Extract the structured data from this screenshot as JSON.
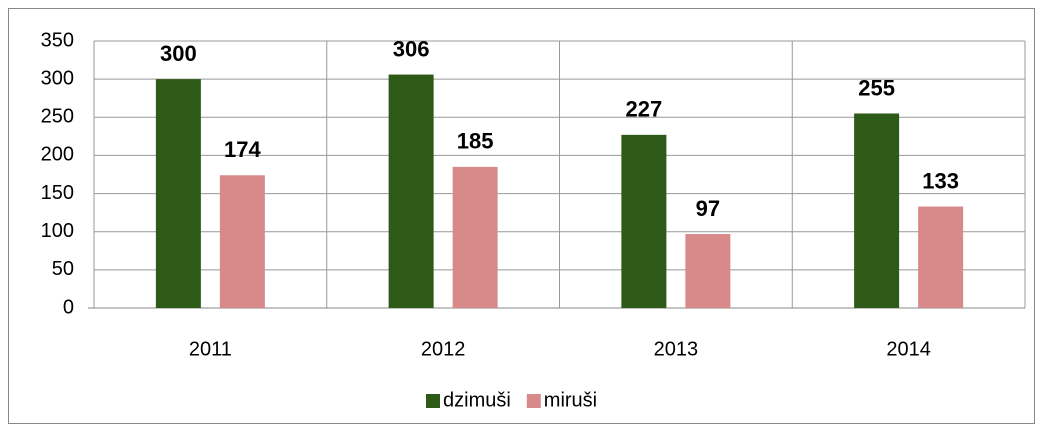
{
  "chart_data": {
    "type": "bar",
    "categories": [
      "2011",
      "2012",
      "2013",
      "2014"
    ],
    "series": [
      {
        "name": "dzimuši",
        "color": "#2d5a16",
        "values": [
          300,
          306,
          227,
          255
        ]
      },
      {
        "name": "miruši",
        "color": "#d88a8a",
        "values": [
          174,
          185,
          97,
          133
        ]
      }
    ],
    "ylim": [
      0,
      350
    ],
    "yticks": [
      0,
      50,
      100,
      150,
      200,
      250,
      300,
      350
    ],
    "grid": true,
    "legend": "bottom"
  }
}
